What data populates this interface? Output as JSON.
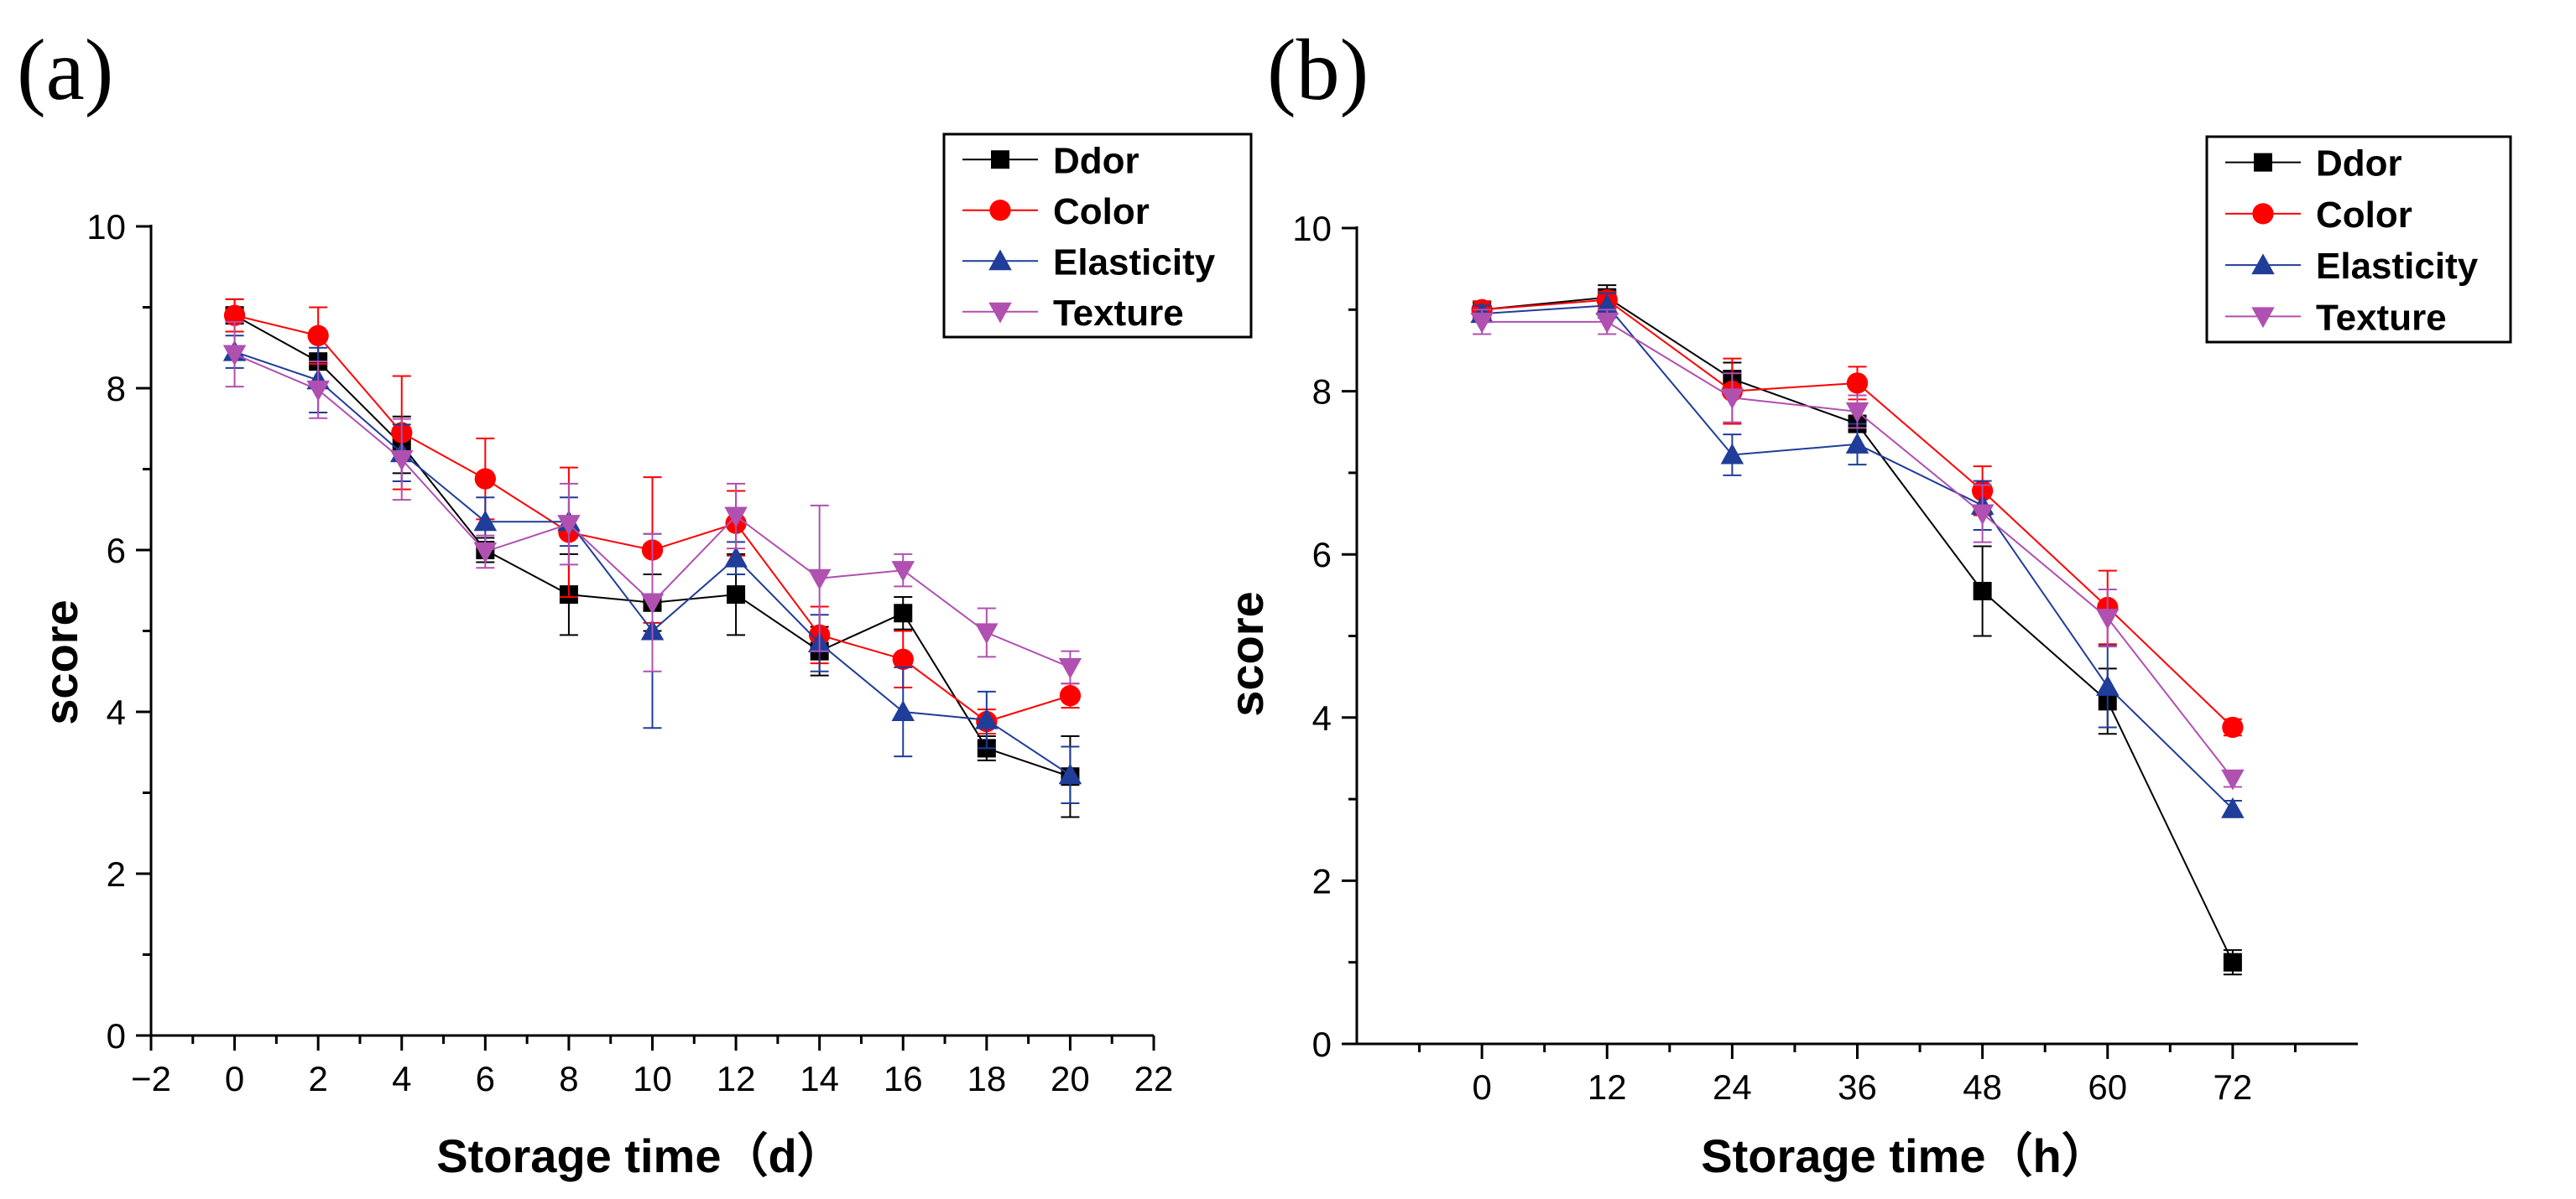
{
  "chart_data": [
    {
      "type": "line",
      "panel_label": "(a)",
      "xlabel": "Storage time（d）",
      "ylabel": "score",
      "xlim": [
        -2,
        22
      ],
      "ylim": [
        0,
        10
      ],
      "xticks": [
        -2,
        0,
        2,
        4,
        6,
        8,
        10,
        12,
        14,
        16,
        18,
        20,
        22
      ],
      "xtick_labels": [
        "−2",
        "0",
        "2",
        "4",
        "6",
        "8",
        "10",
        "12",
        "14",
        "16",
        "18",
        "20",
        "22"
      ],
      "yticks": [
        0,
        2,
        4,
        6,
        8,
        10
      ],
      "ytick_labels": [
        "0",
        "2",
        "4",
        "6",
        "8",
        "10"
      ],
      "legend_position": "top-right",
      "x": [
        0,
        2,
        4,
        6,
        8,
        10,
        12,
        14,
        16,
        18,
        20
      ],
      "series": [
        {
          "name": "Ddor",
          "color": "#000000",
          "marker": "square",
          "values": [
            8.9,
            8.33,
            7.3,
            6.0,
            5.45,
            5.35,
            5.45,
            4.75,
            5.22,
            3.55,
            3.2
          ],
          "errors": [
            0.2,
            0.3,
            0.35,
            0.15,
            0.5,
            0.35,
            0.5,
            0.3,
            0.2,
            0.15,
            0.5
          ]
        },
        {
          "name": "Color",
          "color": "#ff0000",
          "marker": "circle",
          "values": [
            8.9,
            8.65,
            7.45,
            6.88,
            6.22,
            6.0,
            6.33,
            4.95,
            4.65,
            3.88,
            4.2
          ],
          "errors": [
            0.2,
            0.35,
            0.7,
            0.5,
            0.8,
            0.9,
            0.4,
            0.35,
            0.35,
            0.15,
            0.15
          ]
        },
        {
          "name": "Elasticity",
          "color": "#1f3d99",
          "marker": "triangle-up",
          "values": [
            8.45,
            8.1,
            7.2,
            6.35,
            6.35,
            5.0,
            5.9,
            4.85,
            4.0,
            3.9,
            3.22
          ],
          "errors": [
            0.2,
            0.4,
            0.35,
            0.3,
            0.3,
            1.2,
            0.2,
            0.35,
            0.55,
            0.35,
            0.35
          ]
        },
        {
          "name": "Texture",
          "color": "#b050b0",
          "marker": "triangle-down",
          "values": [
            8.42,
            7.98,
            7.12,
            5.98,
            6.32,
            5.35,
            6.42,
            5.65,
            5.75,
            4.98,
            4.55
          ],
          "errors": [
            0.4,
            0.35,
            0.5,
            0.2,
            0.5,
            0.85,
            0.4,
            0.9,
            0.2,
            0.3,
            0.2
          ]
        }
      ]
    },
    {
      "type": "line",
      "panel_label": "(b)",
      "xlabel": "Storage time（h）",
      "ylabel": "score",
      "xlim": [
        -12,
        84
      ],
      "ylim": [
        0,
        10
      ],
      "xticks": [
        0,
        12,
        24,
        36,
        48,
        60,
        72
      ],
      "xtick_labels": [
        "0",
        "12",
        "24",
        "36",
        "48",
        "60",
        "72"
      ],
      "yticks": [
        0,
        2,
        4,
        6,
        8,
        10
      ],
      "ytick_labels": [
        "0",
        "2",
        "4",
        "6",
        "8",
        "10"
      ],
      "legend_position": "top-right",
      "x": [
        0,
        12,
        24,
        36,
        48,
        60,
        72
      ],
      "series": [
        {
          "name": "Ddor",
          "color": "#000000",
          "marker": "square",
          "values": [
            9.0,
            9.15,
            8.15,
            7.6,
            5.55,
            4.2,
            1.0
          ],
          "errors": [
            0.1,
            0.15,
            0.2,
            0.35,
            0.55,
            0.4,
            0.15
          ]
        },
        {
          "name": "Color",
          "color": "#ff0000",
          "marker": "circle",
          "values": [
            9.0,
            9.12,
            8.0,
            8.1,
            6.78,
            5.35,
            3.88
          ],
          "errors": [
            0.1,
            0.1,
            0.4,
            0.2,
            0.3,
            0.45,
            0.1
          ]
        },
        {
          "name": "Elasticity",
          "color": "#1f3d99",
          "marker": "triangle-up",
          "values": [
            8.95,
            9.05,
            7.22,
            7.35,
            6.6,
            4.38,
            2.88
          ],
          "errors": [
            0.1,
            0.15,
            0.25,
            0.25,
            0.3,
            0.5,
            0.1
          ]
        },
        {
          "name": "Texture",
          "color": "#b050b0",
          "marker": "triangle-down",
          "values": [
            8.85,
            8.85,
            7.92,
            7.75,
            6.5,
            5.22,
            3.25
          ],
          "errors": [
            0.15,
            0.15,
            0.3,
            0.2,
            0.35,
            0.35,
            0.1
          ]
        }
      ]
    }
  ]
}
